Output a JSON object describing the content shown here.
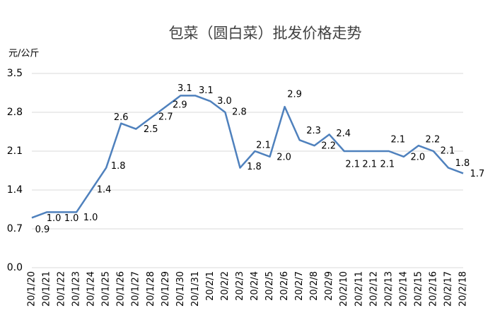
{
  "chart_data": {
    "type": "line",
    "title": "包菜（圆白菜）批发价格走势",
    "y_axis_label": "元/公斤",
    "categories": [
      "20/1/20",
      "20/1/21",
      "20/1/22",
      "20/1/23",
      "20/1/24",
      "20/1/25",
      "20/1/26",
      "20/1/27",
      "20/1/28",
      "20/1/29",
      "20/1/30",
      "20/1/31",
      "20/2/1",
      "20/2/2",
      "20/2/3",
      "20/2/4",
      "20/2/5",
      "20/2/6",
      "20/2/7",
      "20/2/8",
      "20/2/9",
      "20/2/10",
      "20/2/11",
      "20/2/12",
      "20/2/13",
      "20/2/14",
      "20/2/15",
      "20/2/16",
      "20/2/17",
      "20/2/18"
    ],
    "values": [
      0.9,
      1.0,
      1.0,
      1.0,
      1.4,
      1.8,
      2.6,
      2.5,
      2.7,
      2.9,
      3.1,
      3.1,
      3.0,
      2.8,
      1.8,
      2.1,
      2.0,
      2.9,
      2.3,
      2.2,
      2.4,
      2.1,
      2.1,
      2.1,
      2.1,
      2.0,
      2.2,
      2.1,
      1.8,
      1.7
    ],
    "value_labels": [
      "0.9",
      "1.0",
      "1.0",
      "1.0",
      "1.4",
      "1.8",
      "2.6",
      "2.5",
      "2.7",
      "2.9",
      "3.1",
      "3.1",
      "3.0",
      "2.8",
      "1.8",
      "2.1",
      "2.0",
      "2.9",
      "2.3",
      "2.2",
      "2.4",
      "2.1",
      "2.1",
      "2.1",
      "2.1",
      "2.0",
      "2.2",
      "2.1",
      "1.8",
      "1.7"
    ],
    "color": "#4f81bd",
    "ylim": [
      0,
      3.5
    ],
    "yticks": [
      {
        "value": 0,
        "label": "0.0"
      },
      0.7,
      1.4,
      2.1,
      2.8,
      3.5
    ],
    "grid": true
  }
}
